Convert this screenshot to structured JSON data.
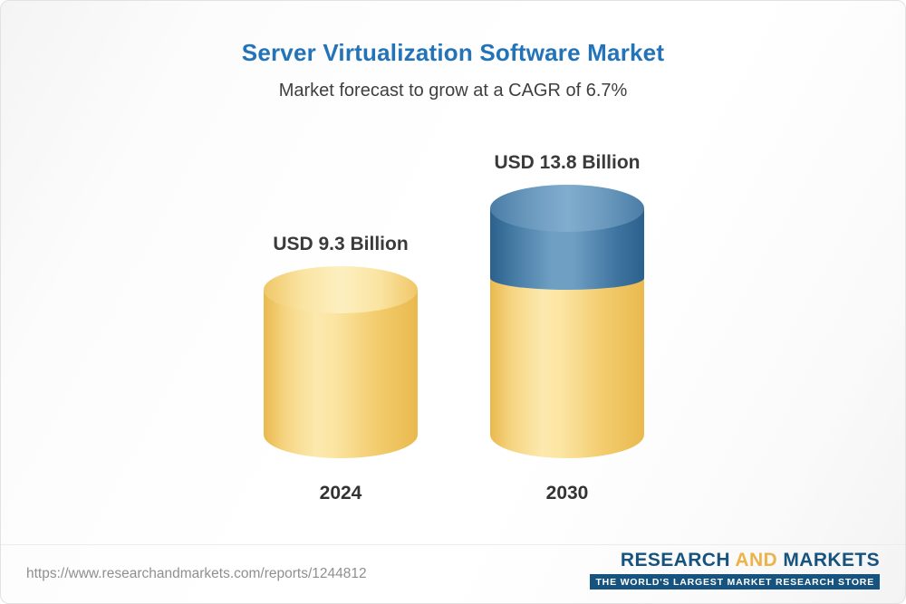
{
  "page": {
    "title": "Server Virtualization Software Market",
    "subtitle": "Market forecast to grow at a CAGR of 6.7%"
  },
  "chart_data": {
    "type": "bar",
    "style": "3d-cylinder",
    "title": "Server Virtualization Software Market",
    "subtitle": "Market forecast to grow at a CAGR of 6.7%",
    "cagr_percent": 6.7,
    "unit": "USD Billion",
    "categories": [
      "2024",
      "2030"
    ],
    "values": [
      9.3,
      13.8
    ],
    "value_labels": [
      "USD 9.3 Billion",
      "USD 13.8 Billion"
    ],
    "ylim": [
      0,
      13.8
    ],
    "legend": "none",
    "grid": false,
    "colors": {
      "bar_2024": "#f6d27a",
      "bar_2030_base_segment": "#f6d27a",
      "bar_2030_growth_segment": "#37719d",
      "title": "#2273b8"
    }
  },
  "footer": {
    "url": "https://www.researchandmarkets.com/reports/1244812",
    "logo": {
      "word_research": "RESEARCH",
      "word_and": "AND",
      "word_markets": "MARKETS",
      "tagline": "THE WORLD'S LARGEST MARKET RESEARCH STORE"
    }
  }
}
